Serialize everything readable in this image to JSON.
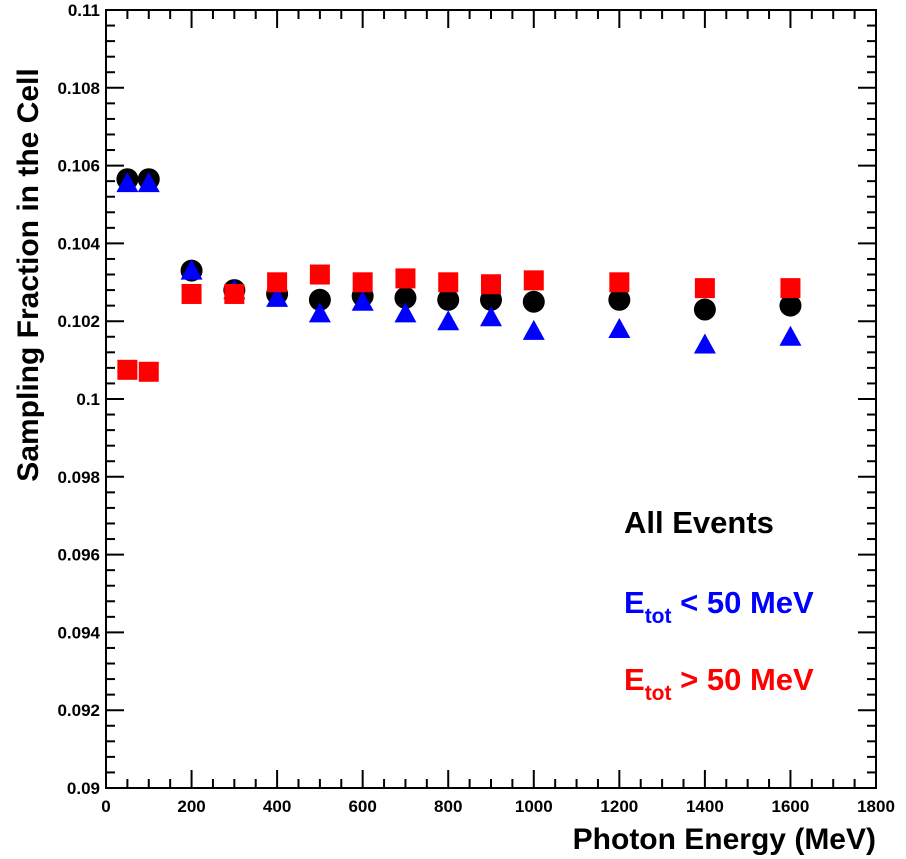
{
  "chart_data": {
    "type": "scatter",
    "title": "",
    "xlabel": "Photon Energy (MeV)",
    "ylabel": "Sampling Fraction in the Cell",
    "xlim": [
      0,
      1800
    ],
    "ylim": [
      0.09,
      0.11
    ],
    "x_ticks": [
      "0",
      "200",
      "400",
      "600",
      "800",
      "1000",
      "1200",
      "1400",
      "1600",
      "1800"
    ],
    "y_ticks": [
      "0.09",
      "0.092",
      "0.094",
      "0.096",
      "0.098",
      "0.1",
      "0.102",
      "0.104",
      "0.106",
      "0.108",
      "0.11"
    ],
    "grid": false,
    "legend_position": "bottom-right",
    "legend": [
      {
        "text": "All Events",
        "main": "",
        "sub": "",
        "rest": "",
        "color": "#000000"
      },
      {
        "text": "",
        "main": "E",
        "sub": "tot",
        "rest": " < 50 MeV",
        "color": "#0000ff"
      },
      {
        "text": "",
        "main": "E",
        "sub": "tot",
        "rest": " > 50 MeV",
        "color": "#ff0000"
      }
    ],
    "series": [
      {
        "marker": "circle",
        "color": "#000000",
        "x": [
          50,
          100,
          200,
          300,
          400,
          500,
          600,
          700,
          800,
          900,
          1000,
          1200,
          1400,
          1600
        ],
        "y": [
          0.10565,
          0.10565,
          0.1033,
          0.1028,
          0.1027,
          0.10255,
          0.10265,
          0.1026,
          0.10255,
          0.10255,
          0.1025,
          0.10255,
          0.1023,
          0.1024
        ]
      },
      {
        "marker": "triangle",
        "color": "#0000ff",
        "x": [
          50,
          100,
          200,
          300,
          400,
          500,
          600,
          700,
          800,
          900,
          1000,
          1200,
          1400,
          1600
        ],
        "y": [
          0.10555,
          0.10555,
          0.1033,
          0.1028,
          0.1026,
          0.1022,
          0.1025,
          0.1022,
          0.102,
          0.1021,
          0.10175,
          0.1018,
          0.1014,
          0.1016
        ]
      },
      {
        "marker": "square",
        "color": "#ff0000",
        "x": [
          50,
          100,
          200,
          300,
          400,
          500,
          600,
          700,
          800,
          900,
          1000,
          1200,
          1400,
          1600
        ],
        "y": [
          0.10075,
          0.1007,
          0.1027,
          0.1027,
          0.103,
          0.1032,
          0.103,
          0.1031,
          0.103,
          0.10295,
          0.10305,
          0.103,
          0.10285,
          0.10285
        ]
      }
    ]
  }
}
